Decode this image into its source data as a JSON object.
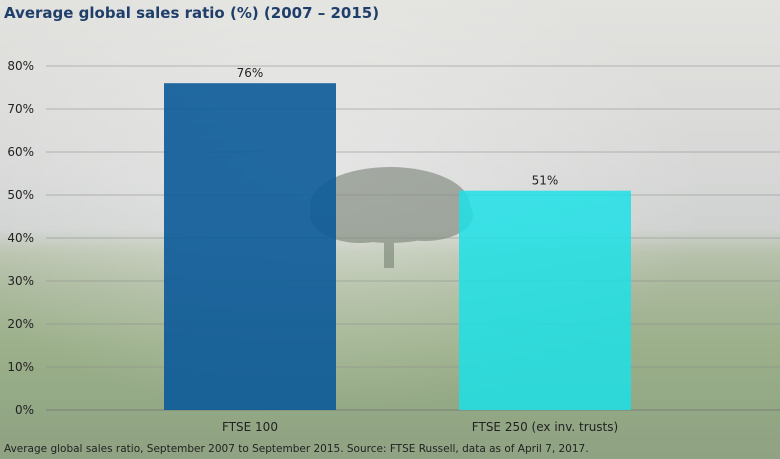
{
  "title": "Average global sales ratio (%) (2007 – 2015)",
  "footnote": "Average global sales ratio, September 2007 to September 2015. Source: FTSE Russell, data as of April 7, 2017.",
  "chart_data": {
    "type": "bar",
    "title": "Average global sales ratio (%) (2007 – 2015)",
    "categories": [
      "FTSE 100",
      "FTSE 250 (ex inv. trusts)"
    ],
    "values": [
      76,
      51
    ],
    "data_labels": [
      "76%",
      "51%"
    ],
    "ylim": [
      0,
      80
    ],
    "yticks": [
      0,
      10,
      20,
      30,
      40,
      50,
      60,
      70,
      80
    ],
    "ytick_labels": [
      "0%",
      "10%",
      "20%",
      "30%",
      "40%",
      "50%",
      "60%",
      "70%",
      "80%"
    ],
    "xlabel": "",
    "ylabel": "",
    "grid": true,
    "colors": [
      "#0b5a99",
      "#1de0e6"
    ]
  }
}
